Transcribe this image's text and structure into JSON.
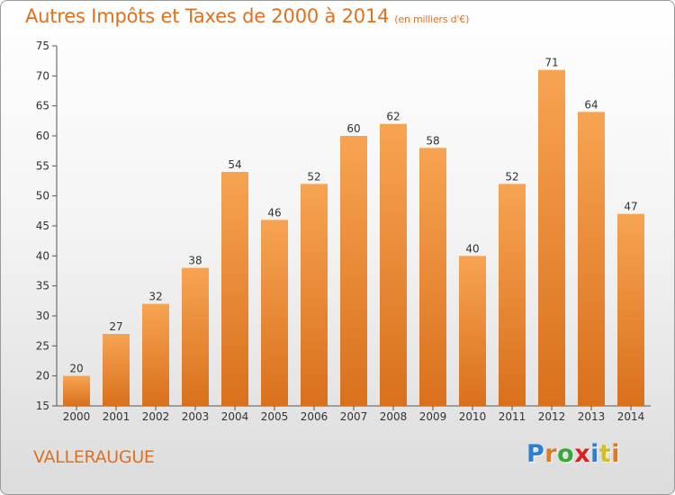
{
  "chart_data": {
    "type": "bar",
    "title": "Autres Impôts et Taxes de 2000 à 2014",
    "unit_label": "(en milliers d'€)",
    "categories": [
      "2000",
      "2001",
      "2002",
      "2003",
      "2004",
      "2005",
      "2006",
      "2007",
      "2008",
      "2009",
      "2010",
      "2011",
      "2012",
      "2013",
      "2014"
    ],
    "values": [
      20,
      27,
      32,
      38,
      54,
      46,
      52,
      60,
      62,
      58,
      40,
      52,
      71,
      64,
      47
    ],
    "ylim": [
      15,
      75
    ],
    "yticks": [
      15,
      20,
      25,
      30,
      35,
      40,
      45,
      50,
      55,
      60,
      65,
      70,
      75
    ],
    "grid": false,
    "bar_color": "#f0903a"
  },
  "commune": "VALLERAUGUE",
  "logo": {
    "letters": [
      "P",
      "r",
      "o",
      "x",
      "i",
      "t",
      "i"
    ],
    "colors": [
      "#2f7fd0",
      "#e07a20",
      "#38a838",
      "#e02020",
      "#2f7fd0",
      "#d0c020",
      "#e07a20"
    ]
  }
}
